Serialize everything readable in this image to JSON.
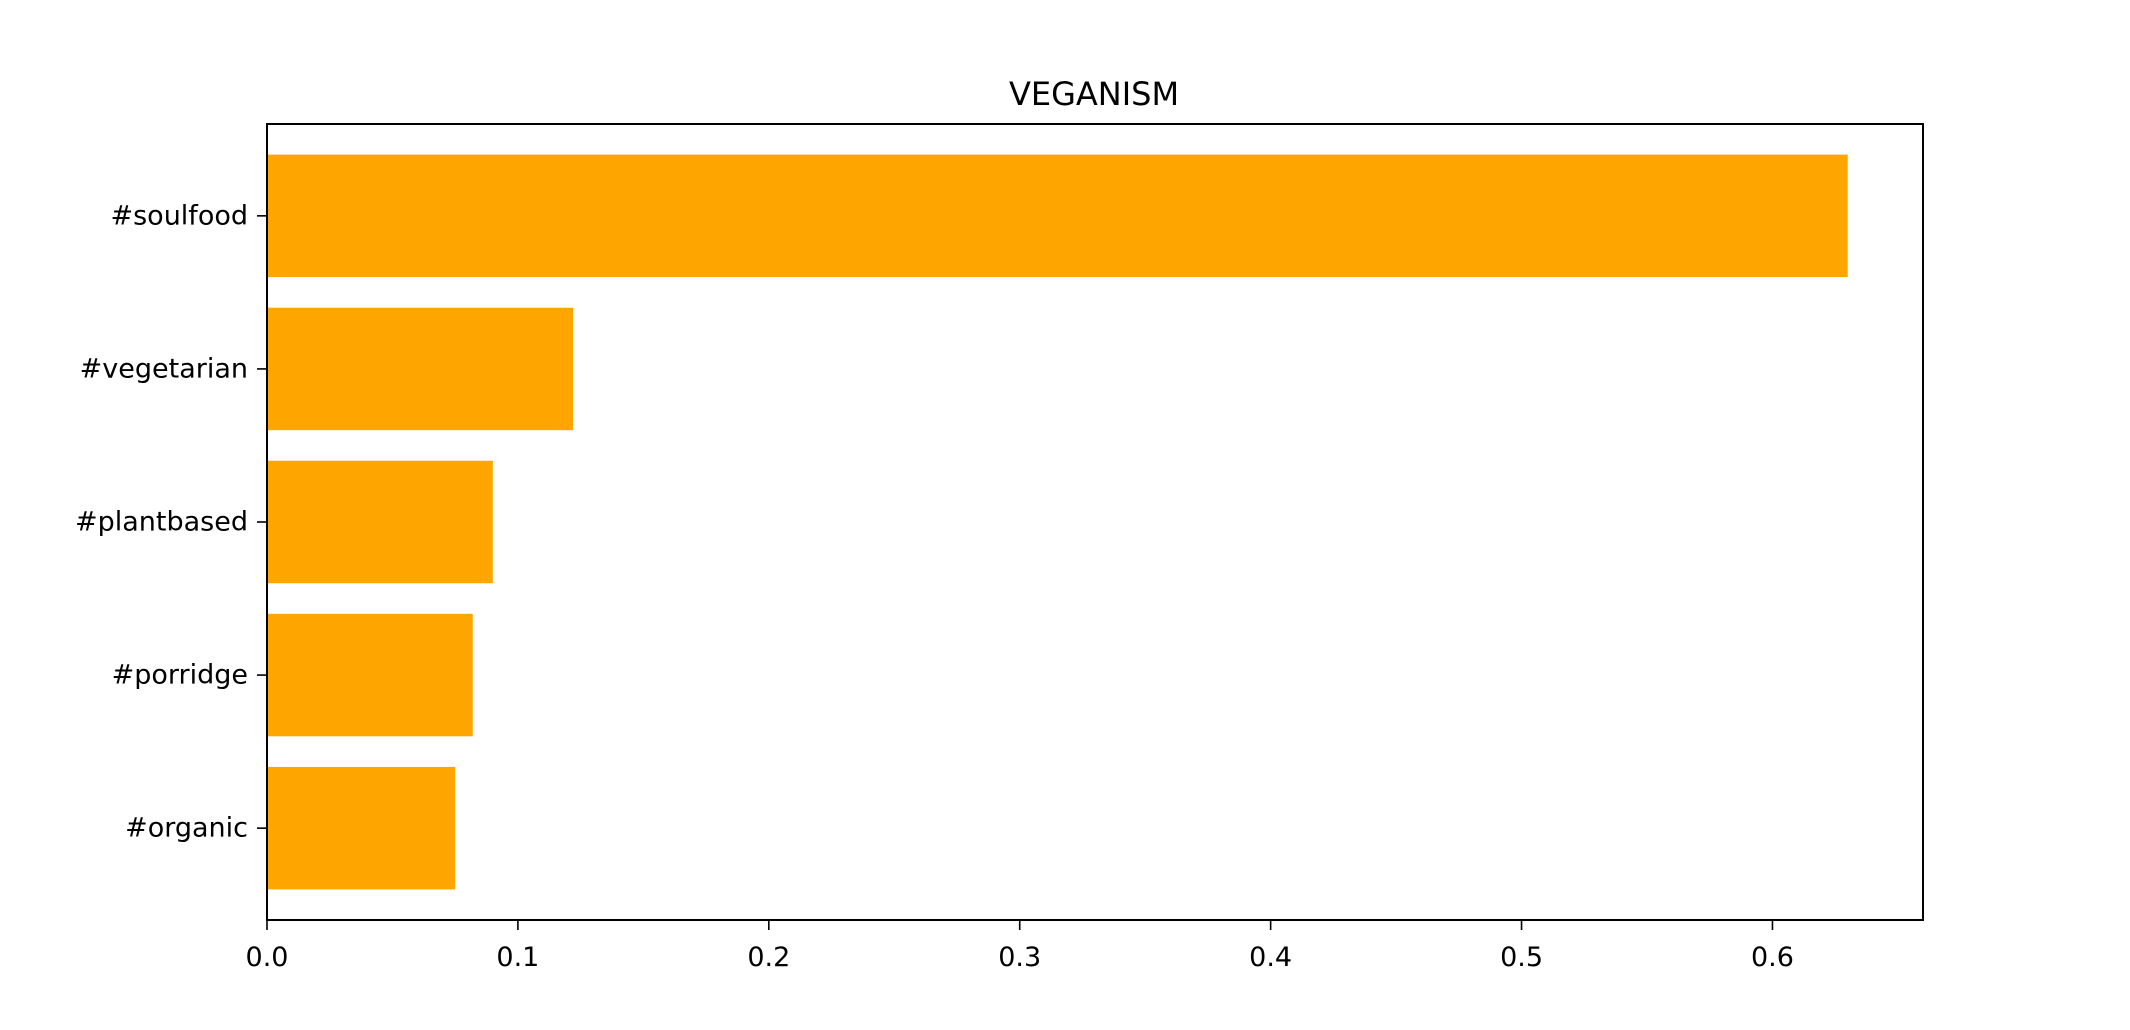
{
  "chart_data": {
    "type": "bar",
    "orientation": "horizontal",
    "title": "VEGANISM",
    "xlabel": "",
    "ylabel": "",
    "categories": [
      "#soulfood",
      "#vegetarian",
      "#plantbased",
      "#porridge",
      "#organic"
    ],
    "values": [
      0.63,
      0.122,
      0.09,
      0.082,
      0.075
    ],
    "xlim": [
      0,
      0.66
    ],
    "xticks": [
      0.0,
      0.1,
      0.2,
      0.3,
      0.4,
      0.5,
      0.6
    ],
    "xtick_labels": [
      "0.0",
      "0.1",
      "0.2",
      "0.3",
      "0.4",
      "0.5",
      "0.6"
    ],
    "bar_color": "#ffa500",
    "grid": false,
    "legend": "none"
  }
}
